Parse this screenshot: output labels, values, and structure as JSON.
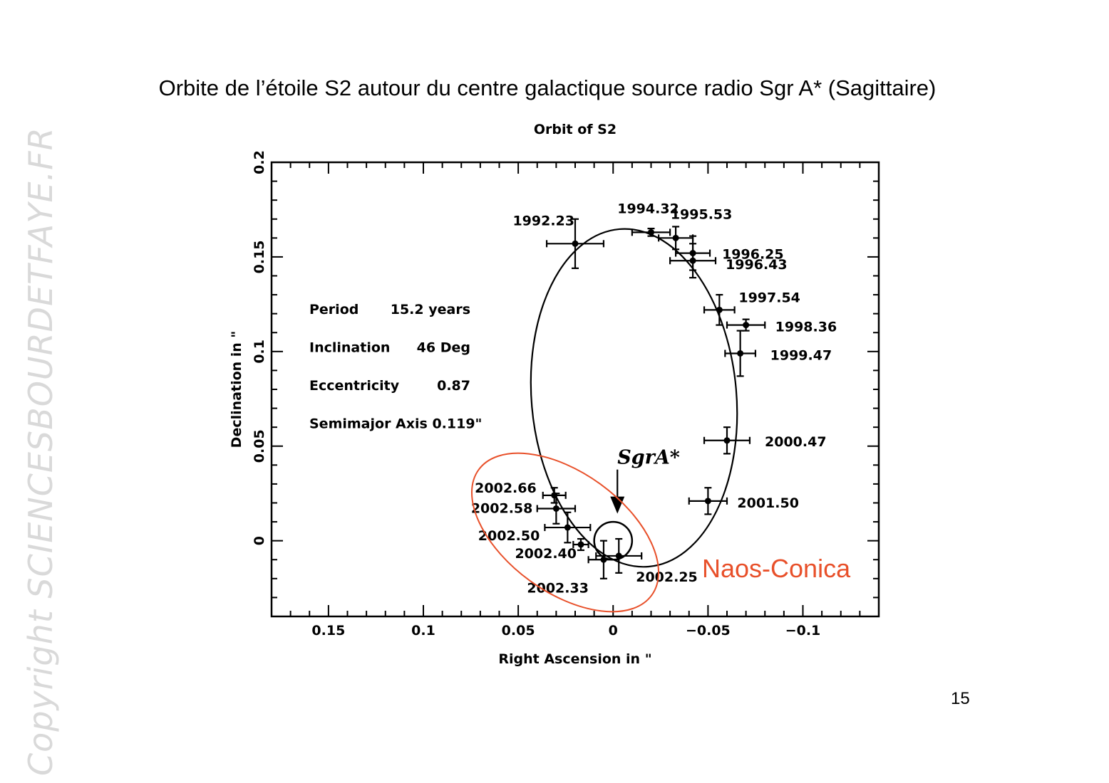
{
  "slide": {
    "title": "Orbite de l’étoile S2 autour du centre galactique source radio Sgr A* (Sagittaire)",
    "page_number": "15",
    "watermark": "Copyright SCIENCESBOURDETFAYE.FR"
  },
  "chart_data": {
    "type": "scatter",
    "title": "Orbit of S2",
    "xlabel": "Right Ascension in \"",
    "ylabel": "Declination in \"",
    "xlim": [
      0.18,
      -0.14
    ],
    "ylim": [
      -0.04,
      0.2
    ],
    "x_ticks": [
      0.15,
      0.1,
      0.05,
      0,
      -0.05,
      -0.1
    ],
    "x_tick_labels": [
      "0.15",
      "0.1",
      "0.05",
      "0",
      "−0.05",
      "−0.1"
    ],
    "y_ticks": [
      0,
      0.05,
      0.1,
      0.15,
      0.2
    ],
    "y_tick_labels": [
      "0",
      "0.05",
      "0.1",
      "0.15",
      "0.2"
    ],
    "grid": false,
    "parameters": [
      {
        "label": "Period",
        "value": "15.2 years"
      },
      {
        "label": "Inclination",
        "value": "46 Deg"
      },
      {
        "label": "Eccentricity",
        "value": "0.87"
      },
      {
        "label": "Semimajor Axis 0.119\"",
        "value": ""
      }
    ],
    "points": [
      {
        "label": "1992.23",
        "x": 0.02,
        "y": 0.157,
        "xerr": 0.015,
        "yerr": 0.013
      },
      {
        "label": "1994.32",
        "x": -0.02,
        "y": 0.163,
        "xerr": 0.01,
        "yerr": 0.002
      },
      {
        "label": "1995.53",
        "x": -0.033,
        "y": 0.16,
        "xerr": 0.009,
        "yerr": 0.006
      },
      {
        "label": "1996.25",
        "x": -0.042,
        "y": 0.152,
        "xerr": 0.009,
        "yerr": 0.009
      },
      {
        "label": "1996.43",
        "x": -0.042,
        "y": 0.148,
        "xerr": 0.012,
        "yerr": 0.009
      },
      {
        "label": "1997.54",
        "x": -0.056,
        "y": 0.122,
        "xerr": 0.008,
        "yerr": 0.008
      },
      {
        "label": "1998.36",
        "x": -0.07,
        "y": 0.114,
        "xerr": 0.01,
        "yerr": 0.003
      },
      {
        "label": "1999.47",
        "x": -0.067,
        "y": 0.099,
        "xerr": 0.008,
        "yerr": 0.012
      },
      {
        "label": "2000.47",
        "x": -0.06,
        "y": 0.053,
        "xerr": 0.012,
        "yerr": 0.007
      },
      {
        "label": "2001.50",
        "x": -0.05,
        "y": 0.021,
        "xerr": 0.01,
        "yerr": 0.007
      },
      {
        "label": "2002.66",
        "x": 0.031,
        "y": 0.024,
        "xerr": 0.006,
        "yerr": 0.004
      },
      {
        "label": "2002.58",
        "x": 0.03,
        "y": 0.017,
        "xerr": 0.01,
        "yerr": 0.008
      },
      {
        "label": "2002.50",
        "x": 0.024,
        "y": 0.007,
        "xerr": 0.012,
        "yerr": 0.008
      },
      {
        "label": "2002.40",
        "x": 0.017,
        "y": -0.002,
        "xerr": 0.004,
        "yerr": 0.003
      },
      {
        "label": "2002.33",
        "x": 0.005,
        "y": -0.01,
        "xerr": 0.008,
        "yerr": 0.01
      },
      {
        "label": "2002.25",
        "x": -0.003,
        "y": -0.008,
        "xerr": 0.012,
        "yerr": 0.009
      }
    ],
    "orbit_ellipse": {
      "center_x": -0.011,
      "center_y": 0.0755,
      "rx": 0.054,
      "ry": 0.0895,
      "angle_deg": -5
    },
    "annotations": {
      "sgra_label": "SgrA*",
      "sgra_position": {
        "x": 0,
        "y": 0
      },
      "sgra_circle_radius": 0.01,
      "highlight_label": "Naos-Conica",
      "highlight_color": "#e8502a"
    }
  }
}
